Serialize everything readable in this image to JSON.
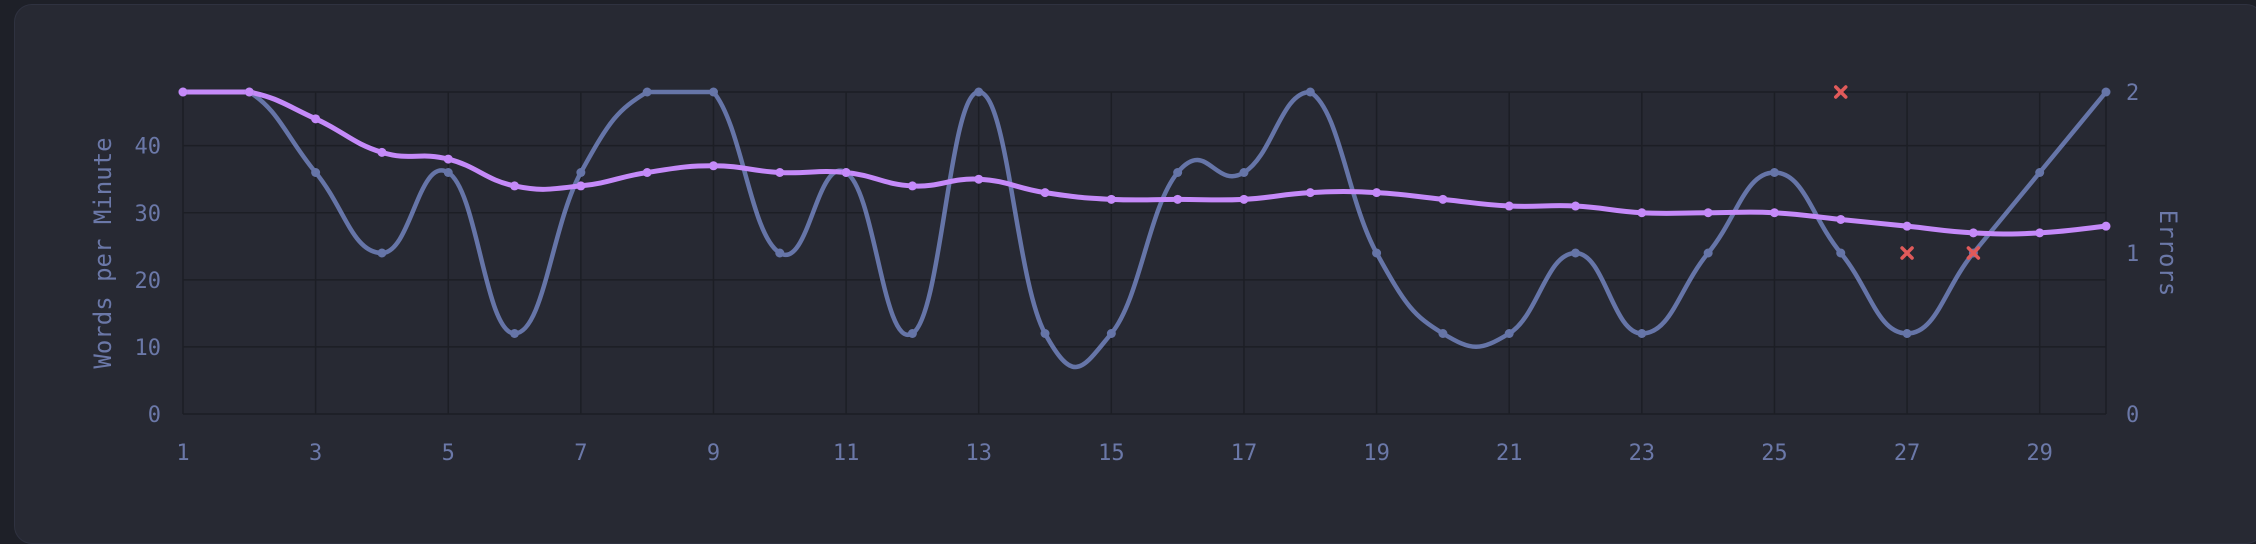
{
  "colors": {
    "wpm": "#c58af9",
    "raw": "#6675a8",
    "errors": "#e05a5a",
    "grid": "#1c1e25",
    "text": "#6b78a8",
    "panel": "#272933",
    "background": "#1e2028"
  },
  "chart_data": {
    "type": "line",
    "xlabel": "",
    "ylabel": "Words per Minute",
    "y2label": "Errors",
    "x": [
      1,
      2,
      3,
      4,
      5,
      6,
      7,
      8,
      9,
      10,
      11,
      12,
      13,
      14,
      15,
      16,
      17,
      18,
      19,
      20,
      21,
      22,
      23,
      24,
      25,
      26,
      27,
      28,
      29,
      30
    ],
    "xticks": [
      1,
      3,
      5,
      7,
      9,
      11,
      13,
      15,
      17,
      19,
      21,
      23,
      25,
      27,
      29
    ],
    "ylim": [
      0,
      48
    ],
    "yticks": [
      0,
      10,
      20,
      30,
      40
    ],
    "y2lim": [
      0,
      2
    ],
    "y2ticks": [
      0,
      1,
      2
    ],
    "grid": true,
    "series": [
      {
        "key": "wpm",
        "values": [
          48,
          48,
          44,
          39,
          38,
          34,
          34,
          36,
          37,
          36,
          36,
          34,
          35,
          33,
          32,
          32,
          32,
          33,
          33,
          32,
          31,
          31,
          30,
          30,
          30,
          29,
          28,
          27,
          27,
          28
        ]
      },
      {
        "key": "raw",
        "values": [
          48,
          48,
          36,
          24,
          36,
          12,
          36,
          48,
          48,
          24,
          36,
          12,
          48,
          12,
          12,
          36,
          36,
          48,
          24,
          12,
          12,
          24,
          12,
          24,
          36,
          24,
          12,
          24,
          36,
          48
        ]
      },
      {
        "key": "errors",
        "axis": "right",
        "points": [
          [
            26,
            2
          ],
          [
            27,
            1
          ],
          [
            28,
            1
          ]
        ]
      }
    ]
  }
}
